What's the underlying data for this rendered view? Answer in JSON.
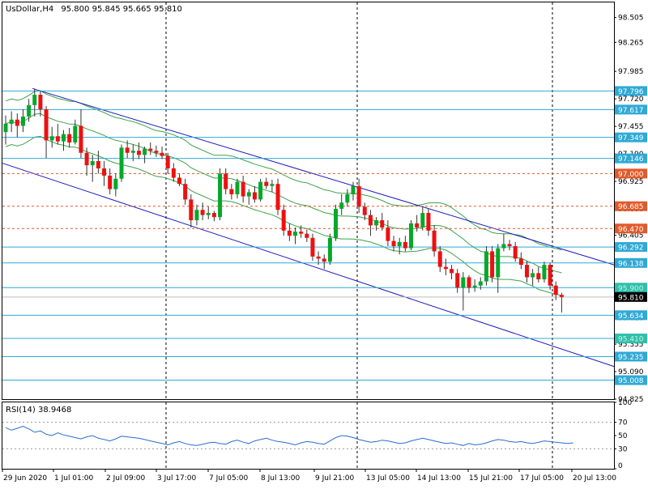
{
  "header": {
    "symbol": "UsDollar,H4",
    "ohlc": "95.800 95.845 95.665 95.810"
  },
  "rsi_label": "RSI(14) 38.9468",
  "colors": {
    "bull": "#05a82a",
    "bear": "#ee1010",
    "hline": "#2fa9d6",
    "dashed": "#e15a2b",
    "channel": "#1a1abf",
    "envelope": "#3da24a",
    "rsi": "#2a6cd0",
    "grid": "#000000"
  },
  "chart_data": [
    {
      "type": "candlestick",
      "ylim": [
        94.825,
        98.65
      ],
      "y_ticks": [
        "98.505",
        "98.265",
        "97.985",
        "97.720",
        "97.455",
        "97.190",
        "96.925",
        "96.660",
        "96.405",
        "96.140",
        "95.875",
        "95.610",
        "95.355",
        "95.090",
        "94.825"
      ],
      "x_ticks": [
        "29 Jun 2020",
        "1 Jul 01:00",
        "2 Jul 09:00",
        "3 Jul 17:00",
        "7 Jul 05:00",
        "8 Jul 13:00",
        "9 Jul 21:00",
        "13 Jul 05:00",
        "14 Jul 13:00",
        "15 Jul 21:00",
        "17 Jul 05:00",
        "20 Jul 13:00"
      ],
      "day_separators": [
        "3 Jul 17:00",
        "9 Jul 21:00",
        "17 Jul 05:00"
      ],
      "price_levels": [
        {
          "label": "97.796",
          "value": 97.796,
          "style": "solid"
        },
        {
          "label": "97.617",
          "value": 97.617,
          "style": "solid"
        },
        {
          "label": "97.349",
          "value": 97.349,
          "style": "solid"
        },
        {
          "label": "97.146",
          "value": 97.146,
          "style": "solid"
        },
        {
          "label": "97.000",
          "value": 97.0,
          "style": "dashed"
        },
        {
          "label": "96.685",
          "value": 96.685,
          "style": "dashed"
        },
        {
          "label": "96.470",
          "value": 96.47,
          "style": "dashed"
        },
        {
          "label": "96.292",
          "value": 96.292,
          "style": "solid"
        },
        {
          "label": "96.138",
          "value": 96.138,
          "style": "solid"
        },
        {
          "label": "95.634",
          "value": 95.634,
          "style": "solid"
        },
        {
          "label": "95.235",
          "value": 95.235,
          "style": "solid"
        },
        {
          "label": "95.008",
          "value": 95.008,
          "style": "solid"
        }
      ],
      "faded_levels": [
        {
          "label": "95.900",
          "value": 95.9
        },
        {
          "label": "95.410",
          "value": 95.41
        }
      ],
      "current_price": {
        "label": "95.810",
        "value": 95.81
      },
      "candles": [
        [
          97.4,
          97.56,
          97.28,
          97.48
        ],
        [
          97.48,
          97.6,
          97.4,
          97.52
        ],
        [
          97.52,
          97.58,
          97.35,
          97.46
        ],
        [
          97.46,
          97.62,
          97.4,
          97.55
        ],
        [
          97.55,
          97.72,
          97.5,
          97.66
        ],
        [
          97.66,
          97.82,
          97.55,
          97.76
        ],
        [
          97.76,
          97.8,
          97.55,
          97.62
        ],
        [
          97.62,
          97.65,
          97.15,
          97.32
        ],
        [
          97.32,
          97.45,
          97.25,
          97.36
        ],
        [
          97.36,
          97.48,
          97.28,
          97.31
        ],
        [
          97.31,
          97.42,
          97.22,
          97.38
        ],
        [
          97.38,
          97.44,
          97.25,
          97.3
        ],
        [
          97.3,
          97.52,
          97.28,
          97.46
        ],
        [
          97.46,
          97.62,
          97.15,
          97.2
        ],
        [
          97.2,
          97.25,
          96.98,
          97.08
        ],
        [
          97.08,
          97.18,
          96.92,
          97.12
        ],
        [
          97.12,
          97.22,
          97.0,
          97.05
        ],
        [
          97.05,
          97.12,
          96.88,
          96.98
        ],
        [
          96.98,
          97.05,
          96.8,
          96.85
        ],
        [
          96.85,
          97.0,
          96.78,
          96.95
        ],
        [
          96.95,
          97.28,
          96.92,
          97.25
        ],
        [
          97.25,
          97.32,
          97.15,
          97.2
        ],
        [
          97.2,
          97.28,
          97.12,
          97.22
        ],
        [
          97.22,
          97.3,
          97.14,
          97.18
        ],
        [
          97.18,
          97.26,
          97.1,
          97.24
        ],
        [
          97.24,
          97.3,
          97.18,
          97.22
        ],
        [
          97.22,
          97.27,
          97.16,
          97.2
        ],
        [
          97.2,
          97.26,
          97.14,
          97.17
        ],
        [
          97.17,
          97.2,
          97.0,
          97.05
        ],
        [
          97.05,
          97.1,
          96.92,
          96.96
        ],
        [
          96.96,
          97.0,
          96.88,
          96.9
        ],
        [
          96.9,
          96.95,
          96.7,
          96.75
        ],
        [
          96.75,
          96.8,
          96.48,
          96.55
        ],
        [
          96.55,
          96.7,
          96.5,
          96.65
        ],
        [
          96.65,
          96.72,
          96.55,
          96.6
        ],
        [
          96.6,
          96.68,
          96.56,
          96.62
        ],
        [
          96.62,
          96.64,
          96.54,
          96.58
        ],
        [
          96.58,
          97.05,
          96.55,
          97.0
        ],
        [
          97.0,
          97.05,
          96.8,
          96.85
        ],
        [
          96.85,
          96.9,
          96.75,
          96.8
        ],
        [
          96.8,
          96.95,
          96.76,
          96.92
        ],
        [
          96.92,
          96.98,
          96.72,
          96.78
        ],
        [
          96.78,
          96.85,
          96.7,
          96.82
        ],
        [
          96.82,
          96.88,
          96.72,
          96.75
        ],
        [
          96.75,
          96.95,
          96.73,
          96.92
        ],
        [
          96.92,
          96.96,
          96.85,
          96.88
        ],
        [
          96.88,
          96.94,
          96.82,
          96.9
        ],
        [
          96.9,
          96.95,
          96.6,
          96.65
        ],
        [
          96.65,
          96.7,
          96.4,
          96.45
        ],
        [
          96.45,
          96.52,
          96.35,
          96.4
        ],
        [
          96.4,
          96.48,
          96.32,
          96.44
        ],
        [
          96.44,
          96.5,
          96.38,
          96.42
        ],
        [
          96.42,
          96.46,
          96.34,
          96.38
        ],
        [
          96.38,
          96.42,
          96.16,
          96.2
        ],
        [
          96.2,
          96.25,
          96.12,
          96.18
        ],
        [
          96.18,
          96.22,
          96.08,
          96.15
        ],
        [
          96.15,
          96.42,
          96.12,
          96.38
        ],
        [
          96.38,
          96.7,
          96.35,
          96.66
        ],
        [
          96.66,
          96.8,
          96.6,
          96.72
        ],
        [
          96.72,
          96.85,
          96.68,
          96.8
        ],
        [
          96.8,
          96.92,
          96.74,
          96.88
        ],
        [
          96.88,
          96.95,
          96.62,
          96.68
        ],
        [
          96.68,
          96.72,
          96.55,
          96.6
        ],
        [
          96.6,
          96.65,
          96.4,
          96.5
        ],
        [
          96.5,
          96.58,
          96.45,
          96.55
        ],
        [
          96.55,
          96.62,
          96.45,
          96.48
        ],
        [
          96.48,
          96.55,
          96.3,
          96.35
        ],
        [
          96.35,
          96.4,
          96.25,
          96.3
        ],
        [
          96.3,
          96.38,
          96.22,
          96.34
        ],
        [
          96.34,
          96.4,
          96.25,
          96.28
        ],
        [
          96.28,
          96.55,
          96.26,
          96.52
        ],
        [
          96.52,
          96.6,
          96.44,
          96.48
        ],
        [
          96.48,
          96.68,
          96.45,
          96.62
        ],
        [
          96.62,
          96.66,
          96.4,
          96.45
        ],
        [
          96.45,
          96.5,
          96.2,
          96.25
        ],
        [
          96.25,
          96.3,
          96.05,
          96.1
        ],
        [
          96.1,
          96.18,
          96.02,
          96.08
        ],
        [
          96.08,
          96.12,
          95.98,
          96.04
        ],
        [
          96.04,
          96.08,
          95.85,
          95.9
        ],
        [
          95.9,
          96.05,
          95.68,
          96.0
        ],
        [
          96.0,
          96.02,
          95.85,
          95.9
        ],
        [
          95.9,
          95.98,
          95.86,
          95.92
        ],
        [
          95.92,
          96.0,
          95.88,
          95.96
        ],
        [
          95.96,
          96.3,
          95.92,
          96.25
        ],
        [
          96.25,
          96.3,
          95.95,
          96.0
        ],
        [
          96.0,
          96.32,
          95.85,
          96.28
        ],
        [
          96.28,
          96.42,
          96.25,
          96.32
        ],
        [
          96.32,
          96.36,
          96.26,
          96.3
        ],
        [
          96.3,
          96.34,
          96.15,
          96.18
        ],
        [
          96.18,
          96.24,
          96.08,
          96.12
        ],
        [
          96.12,
          96.16,
          95.95,
          96.0
        ],
        [
          96.0,
          96.08,
          95.92,
          96.04
        ],
        [
          96.04,
          96.1,
          95.95,
          95.98
        ],
        [
          95.98,
          96.15,
          95.95,
          96.12
        ],
        [
          96.12,
          96.14,
          95.88,
          95.92
        ],
        [
          95.92,
          95.96,
          95.78,
          95.83
        ],
        [
          95.83,
          95.85,
          95.66,
          95.81
        ]
      ]
    },
    {
      "type": "line",
      "title": "RSI(14) 38.9468",
      "ylim": [
        0,
        100
      ],
      "y_ticks": [
        "100",
        "70",
        "50",
        "30",
        "0"
      ],
      "levels": [
        70,
        30
      ],
      "values": [
        62,
        58,
        61,
        64,
        60,
        55,
        57,
        52,
        50,
        54,
        51,
        49,
        47,
        45,
        48,
        50,
        46,
        44,
        42,
        45,
        49,
        48,
        47,
        46,
        44,
        42,
        40,
        38,
        36,
        39,
        41,
        38,
        36,
        35,
        37,
        39,
        40,
        38,
        37,
        41,
        43,
        40,
        38,
        42,
        44,
        46,
        43,
        41,
        40,
        38,
        36,
        39,
        41,
        40,
        38,
        37,
        42,
        47,
        50,
        49,
        47,
        44,
        42,
        40,
        41,
        43,
        42,
        40,
        38,
        39,
        42,
        44,
        46,
        44,
        42,
        40,
        38,
        39,
        37,
        35,
        38,
        36,
        37,
        39,
        42,
        44,
        43,
        41,
        40,
        41,
        39,
        38,
        40,
        42,
        41,
        40,
        39,
        38,
        39
      ]
    }
  ]
}
